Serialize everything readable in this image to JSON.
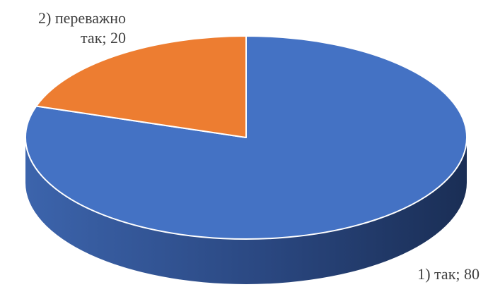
{
  "chart_data": {
    "type": "pie",
    "style": "3d",
    "categories": [
      "1) так",
      "2) переважно так"
    ],
    "values": [
      80,
      20
    ],
    "colors": [
      "#4472C4",
      "#ED7D31"
    ],
    "data_labels": [
      {
        "line1": "1) так; 80"
      },
      {
        "line1": "2) переважно",
        "line2": "так; 20"
      }
    ],
    "legend": "none"
  }
}
